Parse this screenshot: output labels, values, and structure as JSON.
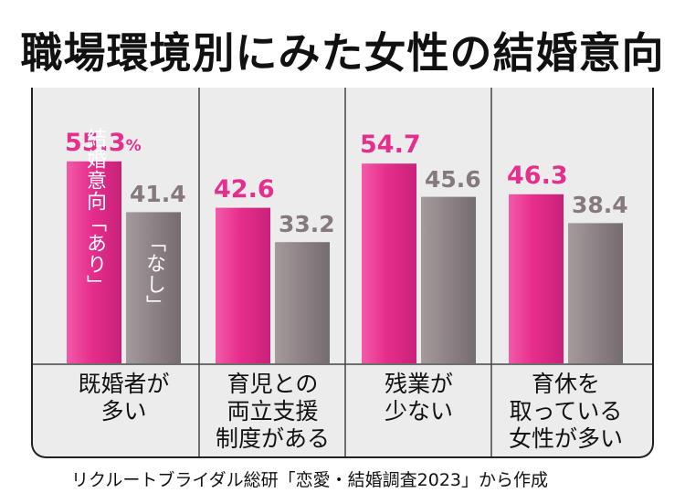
{
  "title": "職場環境別にみた女性の結婚意向",
  "source": "リクルートブライダル総研「恋愛・結婚調査2023」から作成",
  "colors": {
    "yes": "#e62e8c",
    "no": "#8f8487"
  },
  "chart_data": {
    "type": "bar",
    "title": "職場環境別にみた女性の結婚意向",
    "categories": [
      "既婚者が\n多い",
      "育児との\n両立支援\n制度がある",
      "残業が\n少ない",
      "育休を\n取っている\n女性が多い"
    ],
    "series": [
      {
        "name": "結婚意向「あり」",
        "values": [
          55.3,
          42.6,
          54.7,
          46.3
        ]
      },
      {
        "name": "「なし」",
        "values": [
          41.4,
          33.2,
          45.6,
          38.4
        ]
      }
    ],
    "value_labels": {
      "yes": [
        "55.3",
        "42.6",
        "54.7",
        "46.3"
      ],
      "no": [
        "41.4",
        "33.2",
        "45.6",
        "38.4"
      ]
    },
    "unit": "%",
    "grid": false,
    "legend": "in-bar labels (first group)"
  }
}
